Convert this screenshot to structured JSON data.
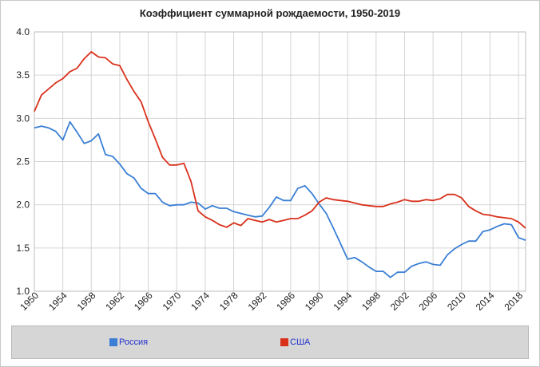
{
  "chart_data": {
    "type": "line",
    "title": "Коэффициент суммарной рождаемости, 1950-2019",
    "xlabel": "",
    "ylabel": "",
    "xlim": [
      1950,
      2019
    ],
    "ylim": [
      1.0,
      4.0
    ],
    "yticks": [
      "1.0",
      "1.5",
      "2.0",
      "2.5",
      "3.0",
      "3.5",
      "4.0"
    ],
    "xticks": [
      "1950",
      "1954",
      "1958",
      "1962",
      "1966",
      "1970",
      "1974",
      "1978",
      "1982",
      "1986",
      "1990",
      "1994",
      "1998",
      "2002",
      "2006",
      "2010",
      "2014",
      "2018"
    ],
    "grid": true,
    "legend_position": "bottom",
    "x": [
      1950,
      1951,
      1952,
      1953,
      1954,
      1955,
      1956,
      1957,
      1958,
      1959,
      1960,
      1961,
      1962,
      1963,
      1964,
      1965,
      1966,
      1967,
      1968,
      1969,
      1970,
      1971,
      1972,
      1973,
      1974,
      1975,
      1976,
      1977,
      1978,
      1979,
      1980,
      1981,
      1982,
      1983,
      1984,
      1985,
      1986,
      1987,
      1988,
      1989,
      1990,
      1991,
      1992,
      1993,
      1994,
      1995,
      1996,
      1997,
      1998,
      1999,
      2000,
      2001,
      2002,
      2003,
      2004,
      2005,
      2006,
      2007,
      2008,
      2009,
      2010,
      2011,
      2012,
      2013,
      2014,
      2015,
      2016,
      2017,
      2018,
      2019
    ],
    "series": [
      {
        "name": "Россия",
        "color": "#3a7fd5",
        "values": [
          2.89,
          2.91,
          2.89,
          2.85,
          2.75,
          2.96,
          2.84,
          2.71,
          2.74,
          2.82,
          2.58,
          2.56,
          2.47,
          2.36,
          2.31,
          2.19,
          2.13,
          2.13,
          2.03,
          1.99,
          2.0,
          2.0,
          2.03,
          2.02,
          1.95,
          1.99,
          1.96,
          1.96,
          1.92,
          1.9,
          1.88,
          1.86,
          1.87,
          1.97,
          2.09,
          2.05,
          2.05,
          2.19,
          2.22,
          2.13,
          2.01,
          1.9,
          1.73,
          1.55,
          1.37,
          1.39,
          1.34,
          1.28,
          1.23,
          1.23,
          1.16,
          1.22,
          1.22,
          1.29,
          1.32,
          1.34,
          1.31,
          1.3,
          1.42,
          1.49,
          1.54,
          1.58,
          1.58,
          1.69,
          1.71,
          1.75,
          1.78,
          1.77,
          1.62,
          1.59
        ]
      },
      {
        "name": "США",
        "color": "#d9301b",
        "values": [
          3.08,
          3.27,
          3.34,
          3.41,
          3.46,
          3.54,
          3.58,
          3.69,
          3.77,
          3.71,
          3.7,
          3.63,
          3.61,
          3.45,
          3.31,
          3.19,
          2.96,
          2.76,
          2.55,
          2.46,
          2.46,
          2.48,
          2.27,
          1.93,
          1.86,
          1.82,
          1.77,
          1.74,
          1.79,
          1.76,
          1.84,
          1.82,
          1.8,
          1.83,
          1.8,
          1.82,
          1.84,
          1.84,
          1.88,
          1.93,
          2.03,
          2.08,
          2.06,
          2.05,
          2.04,
          2.02,
          2.0,
          1.99,
          1.98,
          1.98,
          2.01,
          2.03,
          2.06,
          2.04,
          2.04,
          2.06,
          2.05,
          2.07,
          2.12,
          2.12,
          2.08,
          1.98,
          1.93,
          1.89,
          1.88,
          1.86,
          1.85,
          1.84,
          1.8,
          1.73
        ]
      }
    ]
  }
}
